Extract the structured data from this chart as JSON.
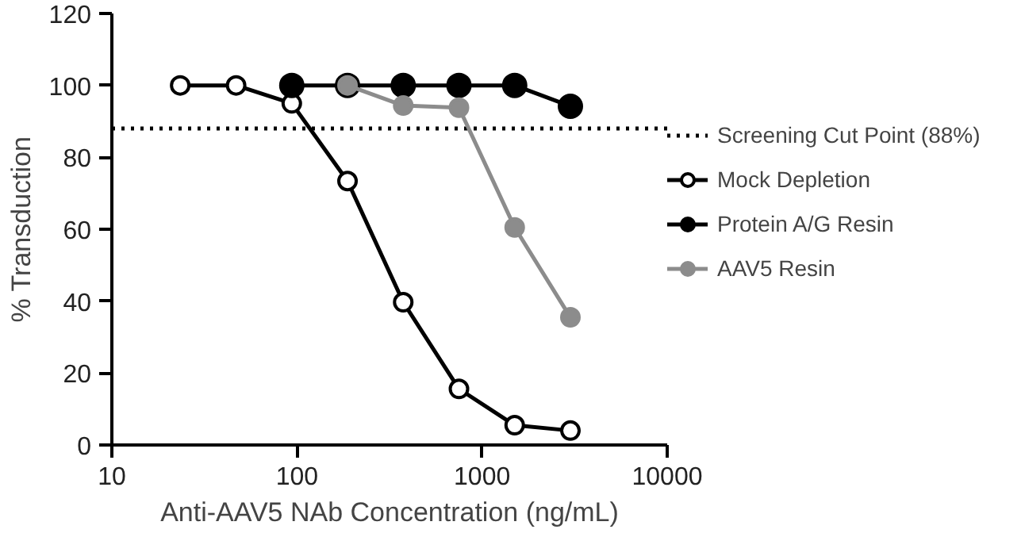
{
  "chart_data": {
    "type": "line",
    "xlabel": "Anti-AAV5 NAb Concentration (ng/mL)",
    "ylabel": "% Transduction",
    "log": "x",
    "xlim": [
      10,
      10000
    ],
    "xticks": [
      10,
      100,
      1000,
      10000
    ],
    "ylim": [
      0,
      120
    ],
    "yticks": [
      0,
      20,
      40,
      60,
      80,
      100,
      120
    ],
    "grid": false,
    "legend": "right",
    "marker": "circle",
    "line_style": "solid",
    "series": [
      {
        "name": "Mock Depletion",
        "color": "#000000",
        "x": [
          23.4,
          46.9,
          93.75,
          187.5,
          375,
          750,
          1500,
          3000
        ],
        "values": [
          100,
          100,
          95,
          73.4,
          39.7,
          15.6,
          5.5,
          4
        ]
      },
      {
        "name": "Protein A/G Resin",
        "color": "#000000",
        "x": [
          93.75,
          187.5,
          375,
          750,
          1500,
          3000
        ],
        "values": [
          100,
          100,
          100,
          100,
          100,
          94.2
        ]
      },
      {
        "name": "AAV5 Resin",
        "color": "#8c8c8c",
        "x": [
          187.5,
          375,
          750,
          1500,
          3000
        ],
        "values": [
          100,
          94.4,
          93.8,
          60.5,
          35.5
        ]
      }
    ],
    "ref_lines": [
      {
        "axis": "y",
        "value": 88,
        "label": "Screening Cut Point (88%)",
        "line_style": "dotted",
        "color": "#000000"
      }
    ]
  }
}
